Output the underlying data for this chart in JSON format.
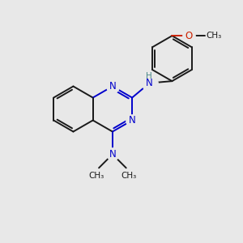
{
  "background_color": "#e8e8e8",
  "bond_color": "#1a1a1a",
  "N_color": "#0000cc",
  "O_color": "#cc2200",
  "H_color": "#4a8888",
  "figsize": [
    3.0,
    3.0
  ],
  "dpi": 100,
  "bond_lw": 1.4,
  "xlim": [
    0,
    10
  ],
  "ylim": [
    0,
    10
  ]
}
